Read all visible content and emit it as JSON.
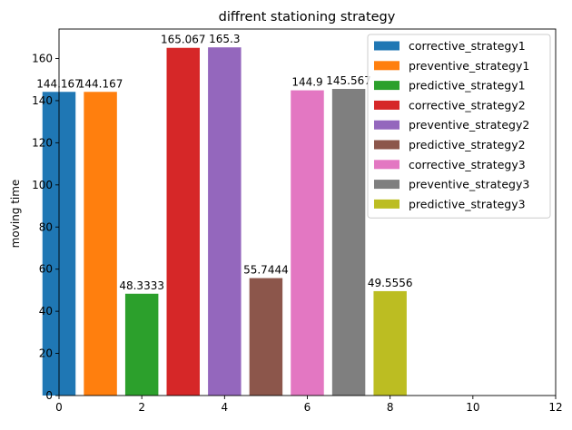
{
  "chart_data": {
    "type": "bar",
    "title": "diffrent stationing strategy",
    "xlabel": "",
    "ylabel": "moving time",
    "xlim": [
      0,
      12
    ],
    "ylim": [
      0,
      174
    ],
    "xticks": [
      0,
      2,
      4,
      6,
      8,
      10,
      12
    ],
    "yticks": [
      0,
      20,
      40,
      60,
      80,
      100,
      120,
      140,
      160
    ],
    "grid": false,
    "legend_position": "upper right",
    "bar_width": 0.8,
    "series": [
      {
        "name": "corrective_strategy1",
        "x": 0,
        "value": 144.167,
        "label": "144.167",
        "color": "#1f77b4"
      },
      {
        "name": "preventive_strategy1",
        "x": 1,
        "value": 144.167,
        "label": "144.167",
        "color": "#ff7f0e"
      },
      {
        "name": "predictive_strategy1",
        "x": 2,
        "value": 48.3333,
        "label": "48.3333",
        "color": "#2ca02c"
      },
      {
        "name": "corrective_strategy2",
        "x": 3,
        "value": 165.067,
        "label": "165.067",
        "color": "#d62728"
      },
      {
        "name": "preventive_strategy2",
        "x": 4,
        "value": 165.3,
        "label": "165.3",
        "color": "#9467bd"
      },
      {
        "name": "predictive_strategy2",
        "x": 5,
        "value": 55.7444,
        "label": "55.7444",
        "color": "#8c564b"
      },
      {
        "name": "corrective_strategy3",
        "x": 6,
        "value": 144.9,
        "label": "144.9",
        "color": "#e377c2"
      },
      {
        "name": "preventive_strategy3",
        "x": 7,
        "value": 145.567,
        "label": "145.567",
        "color": "#7f7f7f"
      },
      {
        "name": "predictive_strategy3",
        "x": 8,
        "value": 49.5556,
        "label": "49.5556",
        "color": "#bcbd22"
      }
    ]
  }
}
